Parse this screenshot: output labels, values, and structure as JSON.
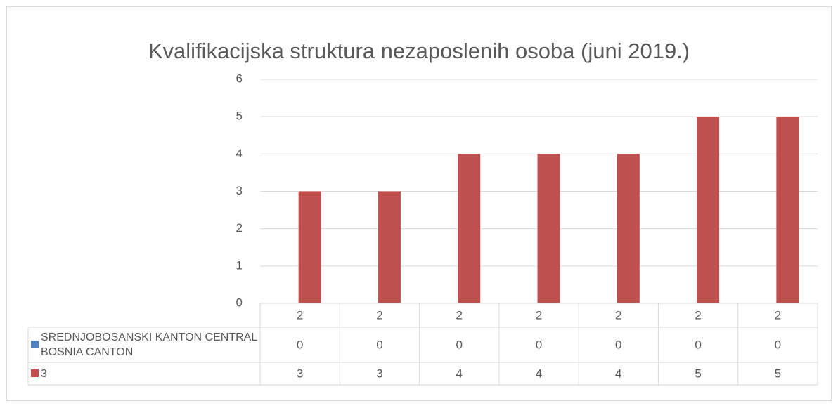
{
  "chart_data": {
    "type": "bar",
    "title": "Kvalifikacijska struktura nezaposlenih osoba (juni 2019.)",
    "categories": [
      "2",
      "2",
      "2",
      "2",
      "2",
      "2",
      "2"
    ],
    "series": [
      {
        "name": "SREDNJOBOSANSKI KANTON CENTRAL BOSNIA CANTON",
        "color": "#4f81bd",
        "values": [
          0,
          0,
          0,
          0,
          0,
          0,
          0
        ]
      },
      {
        "name": "3",
        "color": "#c0504d",
        "values": [
          3,
          3,
          4,
          4,
          4,
          5,
          5
        ]
      }
    ],
    "ylim": [
      0,
      6
    ],
    "yticks": [
      0,
      1,
      2,
      3,
      4,
      5,
      6
    ],
    "grid": true,
    "data_table": true
  }
}
